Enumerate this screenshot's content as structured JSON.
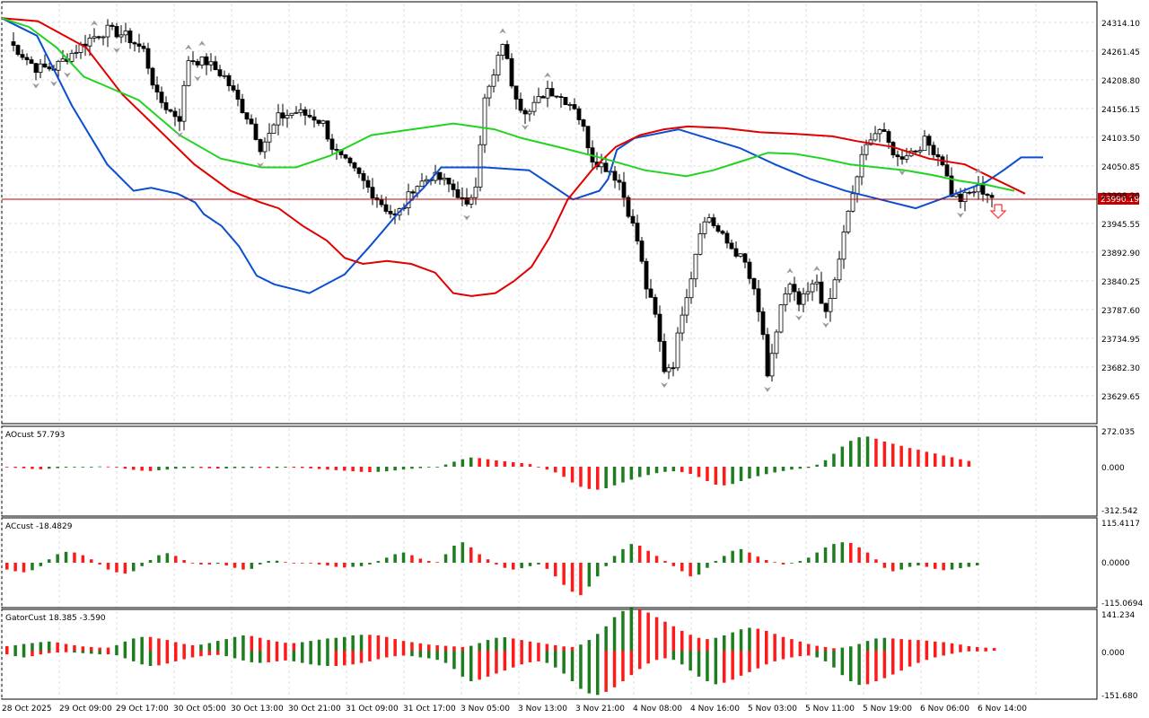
{
  "colors": {
    "background": "#ffffff",
    "grid": "#dcdcdc",
    "border": "#000000",
    "bull_candle": "#ffffff",
    "bear_candle": "#000000",
    "ao_up": "#1e7d1e",
    "ao_down": "#ff1a1a",
    "jaw": "#0b4fd0",
    "teeth": "#e00000",
    "lips": "#21d421",
    "price_line": "#c00000",
    "price_tag_bg": "#c00000",
    "fractal": "#9a9a9a",
    "signal_arrow": "#ff3030"
  },
  "main_pane": {
    "price_tag": "23990.19",
    "price_axis": [
      "24314.10",
      "24261.45",
      "24208.80",
      "24156.15",
      "24103.50",
      "24050.85",
      "23998.20",
      "23945.55",
      "23892.90",
      "23840.25",
      "23787.60",
      "23734.95",
      "23682.30",
      "23629.65"
    ]
  },
  "ao_pane": {
    "title": "AOcust 57.793",
    "axis": [
      "272.035",
      "0.000",
      "-312.542"
    ]
  },
  "ac_pane": {
    "title": "ACcust -18.4829",
    "axis": [
      "115.4117",
      "0.0000",
      "-115.0694"
    ]
  },
  "gator_pane": {
    "title": "GatorCust 18.385 -3.590",
    "axis": [
      "141.234",
      "0.000",
      "-151.680"
    ]
  },
  "time_axis": [
    "28 Oct 2025",
    "29 Oct 09:00",
    "29 Oct 17:00",
    "30 Oct 05:00",
    "30 Oct 13:00",
    "30 Oct 21:00",
    "31 Oct 09:00",
    "31 Oct 17:00",
    "3 Nov 05:00",
    "3 Nov 13:00",
    "3 Nov 21:00",
    "4 Nov 08:00",
    "4 Nov 16:00",
    "5 Nov 03:00",
    "5 Nov 11:00",
    "5 Nov 19:00",
    "6 Nov 06:00",
    "6 Nov 14:00"
  ],
  "chart_data": {
    "type": "candlestick",
    "price_min": 23610,
    "price_max": 24325,
    "current_price": 23990.19,
    "close_path": [
      [
        0,
        24260
      ],
      [
        6,
        24215
      ],
      [
        10,
        24215
      ],
      [
        14,
        24240
      ],
      [
        18,
        24265
      ],
      [
        22,
        24280
      ],
      [
        26,
        24270
      ],
      [
        30,
        24245
      ],
      [
        33,
        24165
      ],
      [
        36,
        24140
      ],
      [
        38,
        24130
      ],
      [
        40,
        24230
      ],
      [
        44,
        24225
      ],
      [
        48,
        24200
      ],
      [
        52,
        24145
      ],
      [
        54,
        24120
      ],
      [
        56,
        24080
      ],
      [
        58,
        24100
      ],
      [
        60,
        24130
      ],
      [
        64,
        24140
      ],
      [
        68,
        24130
      ],
      [
        70,
        24120
      ],
      [
        72,
        24080
      ],
      [
        74,
        24060
      ],
      [
        78,
        24030
      ],
      [
        80,
        24010
      ],
      [
        84,
        23975
      ],
      [
        86,
        23960
      ],
      [
        88,
        23980
      ],
      [
        90,
        24010
      ],
      [
        94,
        24030
      ],
      [
        96,
        24025
      ],
      [
        98,
        24015
      ],
      [
        100,
        24000
      ],
      [
        102,
        23975
      ],
      [
        104,
        24020
      ],
      [
        106,
        24160
      ],
      [
        108,
        24200
      ],
      [
        110,
        24260
      ],
      [
        112,
        24190
      ],
      [
        114,
        24150
      ],
      [
        116,
        24140
      ],
      [
        118,
        24160
      ],
      [
        120,
        24180
      ],
      [
        122,
        24170
      ],
      [
        124,
        24160
      ],
      [
        126,
        24150
      ],
      [
        128,
        24110
      ],
      [
        130,
        24060
      ],
      [
        132,
        24050
      ],
      [
        134,
        24040
      ],
      [
        136,
        24020
      ],
      [
        138,
        23970
      ],
      [
        140,
        23920
      ],
      [
        142,
        23840
      ],
      [
        144,
        23790
      ],
      [
        146,
        23700
      ],
      [
        148,
        23710
      ],
      [
        150,
        23800
      ],
      [
        152,
        23860
      ],
      [
        154,
        23940
      ],
      [
        156,
        23960
      ],
      [
        158,
        23935
      ],
      [
        160,
        23915
      ],
      [
        162,
        23900
      ],
      [
        164,
        23880
      ],
      [
        166,
        23830
      ],
      [
        168,
        23760
      ],
      [
        169,
        23680
      ],
      [
        170,
        23720
      ],
      [
        172,
        23810
      ],
      [
        174,
        23840
      ],
      [
        176,
        23810
      ],
      [
        178,
        23830
      ],
      [
        180,
        23850
      ],
      [
        182,
        23790
      ],
      [
        184,
        23850
      ],
      [
        186,
        23930
      ],
      [
        188,
        24000
      ],
      [
        190,
        24060
      ],
      [
        192,
        24100
      ],
      [
        194,
        24110
      ],
      [
        196,
        24085
      ],
      [
        198,
        24060
      ],
      [
        200,
        24070
      ],
      [
        202,
        24075
      ],
      [
        204,
        24090
      ],
      [
        206,
        24075
      ],
      [
        208,
        24055
      ],
      [
        210,
        24000
      ],
      [
        212,
        23990
      ],
      [
        214,
        24000
      ],
      [
        216,
        24010
      ],
      [
        218,
        24000
      ],
      [
        220,
        23990
      ]
    ],
    "jaw_path": [
      [
        0,
        24300
      ],
      [
        40,
        24270
      ],
      [
        80,
        24150
      ],
      [
        120,
        24050
      ],
      [
        150,
        24005
      ],
      [
        170,
        24010
      ],
      [
        200,
        24000
      ],
      [
        220,
        23985
      ],
      [
        230,
        23965
      ],
      [
        250,
        23945
      ],
      [
        270,
        23910
      ],
      [
        290,
        23860
      ],
      [
        310,
        23845
      ],
      [
        350,
        23830
      ],
      [
        390,
        23862
      ],
      [
        420,
        23912
      ],
      [
        450,
        23965
      ],
      [
        480,
        24010
      ],
      [
        500,
        24045
      ],
      [
        550,
        24045
      ],
      [
        600,
        24040
      ],
      [
        625,
        24015
      ],
      [
        650,
        23990
      ],
      [
        680,
        24005
      ],
      [
        690,
        24025
      ],
      [
        700,
        24075
      ],
      [
        720,
        24095
      ],
      [
        770,
        24110
      ],
      [
        840,
        24078
      ],
      [
        880,
        24050
      ],
      [
        920,
        24025
      ],
      [
        960,
        24005
      ],
      [
        1000,
        23990
      ],
      [
        1040,
        23975
      ],
      [
        1080,
        23997
      ],
      [
        1120,
        24020
      ],
      [
        1140,
        24040
      ],
      [
        1160,
        24062
      ],
      [
        1185,
        24062
      ]
    ],
    "teeth_path": [
      [
        0,
        24300
      ],
      [
        30,
        24295
      ],
      [
        70,
        24250
      ],
      [
        100,
        24170
      ],
      [
        130,
        24110
      ],
      [
        160,
        24050
      ],
      [
        190,
        24005
      ],
      [
        215,
        23985
      ],
      [
        230,
        23975
      ],
      [
        250,
        23945
      ],
      [
        270,
        23920
      ],
      [
        285,
        23890
      ],
      [
        300,
        23880
      ],
      [
        320,
        23885
      ],
      [
        340,
        23880
      ],
      [
        360,
        23865
      ],
      [
        375,
        23830
      ],
      [
        390,
        23825
      ],
      [
        410,
        23830
      ],
      [
        425,
        23850
      ],
      [
        440,
        23875
      ],
      [
        455,
        23925
      ],
      [
        470,
        23990
      ],
      [
        490,
        24040
      ],
      [
        510,
        24080
      ],
      [
        530,
        24100
      ],
      [
        550,
        24110
      ],
      [
        570,
        24115
      ],
      [
        600,
        24112
      ],
      [
        630,
        24105
      ],
      [
        660,
        24102
      ],
      [
        690,
        24098
      ],
      [
        710,
        24090
      ],
      [
        740,
        24080
      ],
      [
        770,
        24060
      ],
      [
        800,
        24050
      ],
      [
        830,
        24020
      ],
      [
        850,
        24000
      ]
    ],
    "lips_path": [
      [
        0,
        24300
      ],
      [
        20,
        24285
      ],
      [
        40,
        24250
      ],
      [
        60,
        24200
      ],
      [
        80,
        24180
      ],
      [
        100,
        24160
      ],
      [
        130,
        24100
      ],
      [
        160,
        24060
      ],
      [
        190,
        24045
      ],
      [
        215,
        24045
      ],
      [
        240,
        24065
      ],
      [
        270,
        24100
      ],
      [
        300,
        24110
      ],
      [
        330,
        24120
      ],
      [
        360,
        24110
      ],
      [
        380,
        24095
      ],
      [
        410,
        24078
      ],
      [
        440,
        24060
      ],
      [
        470,
        24040
      ],
      [
        500,
        24030
      ],
      [
        520,
        24040
      ],
      [
        540,
        24055
      ],
      [
        560,
        24070
      ],
      [
        580,
        24068
      ],
      [
        600,
        24060
      ],
      [
        620,
        24050
      ],
      [
        640,
        24045
      ],
      [
        660,
        24040
      ],
      [
        680,
        24032
      ],
      [
        700,
        24022
      ],
      [
        720,
        24015
      ],
      [
        740,
        24005
      ]
    ],
    "ao_values": [
      -5,
      -8,
      -11,
      -16,
      -18,
      -14,
      -10,
      -6,
      -4,
      -2,
      0,
      2,
      1,
      -3,
      -14,
      -22,
      -28,
      -30,
      -25,
      -20,
      -14,
      -10,
      -8,
      -9,
      -11,
      -13,
      -12,
      -10,
      -9,
      -8,
      -8,
      -9,
      -8,
      -6,
      -7,
      -9,
      -12,
      -16,
      -20,
      -24,
      -28,
      -32,
      -36,
      -38,
      -36,
      -32,
      -26,
      -20,
      -14,
      -10,
      -5,
      -3,
      15,
      35,
      52,
      64,
      60,
      52,
      44,
      38,
      31,
      25,
      18,
      -4,
      -20,
      -40,
      -70,
      -110,
      -140,
      -155,
      -160,
      -150,
      -130,
      -110,
      -90,
      -72,
      -58,
      -45,
      -36,
      -32,
      -38,
      -50,
      -72,
      -100,
      -125,
      -130,
      -120,
      -100,
      -82,
      -66,
      -52,
      -40,
      -30,
      -20,
      -14,
      -8,
      14,
      45,
      90,
      140,
      180,
      205,
      210,
      195,
      175,
      160,
      145,
      130,
      118,
      104,
      92,
      78,
      66,
      52,
      40
    ],
    "ac_values": [
      -20,
      -25,
      -28,
      -22,
      -10,
      10,
      25,
      32,
      30,
      22,
      10,
      -5,
      -20,
      -28,
      -32,
      -25,
      -10,
      8,
      22,
      28,
      20,
      8,
      -2,
      -5,
      -5,
      -3,
      -8,
      -15,
      -20,
      -18,
      -5,
      5,
      6,
      2,
      0,
      -1,
      -2,
      -5,
      -8,
      -12,
      -14,
      -12,
      -10,
      -5,
      5,
      15,
      25,
      30,
      22,
      12,
      5,
      2,
      25,
      50,
      60,
      45,
      25,
      10,
      -5,
      -15,
      -20,
      -16,
      -10,
      -5,
      -18,
      -40,
      -65,
      -85,
      -95,
      -70,
      -40,
      -10,
      20,
      40,
      55,
      50,
      35,
      20,
      5,
      -10,
      -25,
      -40,
      -35,
      -15,
      5,
      20,
      35,
      40,
      30,
      18,
      8,
      2,
      -5,
      -2,
      5,
      15,
      30,
      45,
      55,
      60,
      58,
      45,
      30,
      10,
      -15,
      -25,
      -20,
      -12,
      -8,
      -12,
      -18,
      -22,
      -20,
      -16,
      -12,
      -8
    ],
    "gator_upper": [
      15,
      18,
      22,
      25,
      28,
      30,
      27,
      22,
      18,
      14,
      12,
      10,
      10,
      18,
      30,
      40,
      45,
      45,
      40,
      35,
      28,
      22,
      18,
      20,
      25,
      32,
      38,
      45,
      50,
      48,
      42,
      35,
      30,
      26,
      25,
      28,
      32,
      36,
      40,
      42,
      45,
      50,
      52,
      52,
      50,
      45,
      38,
      32,
      28,
      24,
      20,
      18,
      16,
      14,
      12,
      16,
      25,
      35,
      42,
      44,
      40,
      35,
      30,
      26,
      22,
      18,
      14,
      12,
      20,
      35,
      55,
      80,
      110,
      130,
      140,
      135,
      125,
      110,
      95,
      80,
      65,
      52,
      42,
      38,
      42,
      50,
      60,
      70,
      75,
      72,
      65,
      55,
      45,
      38,
      30,
      22,
      16,
      12,
      8,
      10,
      14,
      22,
      32,
      40,
      42,
      40,
      38,
      36,
      35,
      33,
      30,
      28,
      24,
      20,
      15,
      12,
      10,
      9
    ],
    "gator_lower": [
      -12,
      -18,
      -22,
      -18,
      -12,
      -8,
      -6,
      -5,
      -6,
      -8,
      -10,
      -12,
      -12,
      -15,
      -25,
      -35,
      -45,
      -50,
      -48,
      -42,
      -35,
      -28,
      -22,
      -18,
      -15,
      -14,
      -18,
      -25,
      -32,
      -38,
      -40,
      -38,
      -35,
      -32,
      -35,
      -40,
      -45,
      -48,
      -50,
      -50,
      -48,
      -45,
      -40,
      -35,
      -28,
      -22,
      -18,
      -16,
      -18,
      -22,
      -25,
      -30,
      -40,
      -60,
      -85,
      -100,
      -95,
      -85,
      -75,
      -65,
      -55,
      -45,
      -38,
      -35,
      -40,
      -55,
      -75,
      -100,
      -125,
      -140,
      -145,
      -135,
      -120,
      -100,
      -80,
      -60,
      -42,
      -30,
      -25,
      -30,
      -45,
      -65,
      -85,
      -100,
      -110,
      -105,
      -95,
      -82,
      -70,
      -58,
      -45,
      -35,
      -28,
      -22,
      -18,
      -16,
      -22,
      -35,
      -55,
      -80,
      -100,
      -112,
      -110,
      -100,
      -90,
      -78,
      -65,
      -52,
      -40,
      -30,
      -22,
      -16,
      -10,
      -5,
      -2,
      0,
      0
    ]
  }
}
